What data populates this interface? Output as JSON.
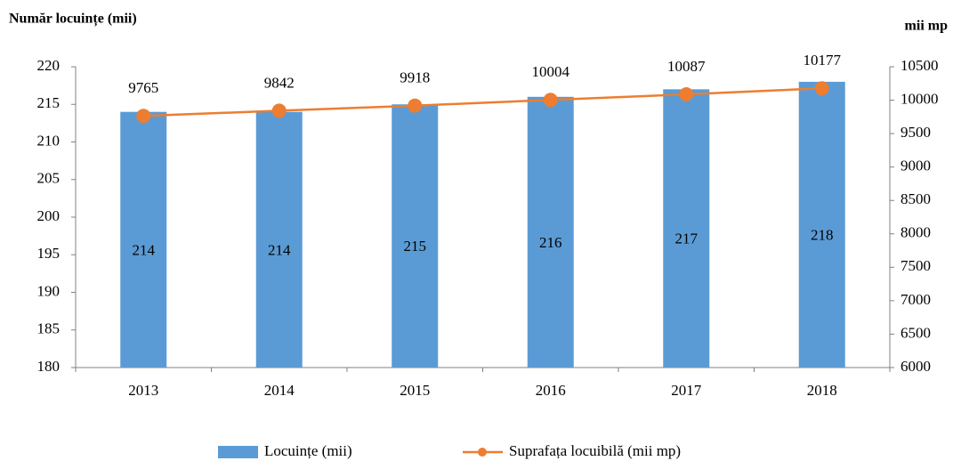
{
  "chart_data": {
    "type": "bar",
    "y_label": "Număr locuințe (mii)",
    "y2_label": "mii mp",
    "categories": [
      "2013",
      "2014",
      "2015",
      "2016",
      "2017",
      "2018"
    ],
    "series": [
      {
        "name": "Locuințe (mii)",
        "type": "bar",
        "color": "#5b9bd5",
        "values": [
          214,
          214,
          215,
          216,
          217,
          218
        ]
      },
      {
        "name": "Suprafața locuibilă (mii mp)",
        "type": "line",
        "axis": "y2",
        "color": "#ed7d31",
        "values": [
          9765,
          9842,
          9918,
          10004,
          10087,
          10177
        ]
      }
    ],
    "ylim": [
      180,
      220
    ],
    "yticks": [
      180,
      185,
      190,
      195,
      200,
      205,
      210,
      215,
      220
    ],
    "y2lim": [
      6000,
      10500
    ],
    "y2ticks": [
      6000,
      6500,
      7000,
      7500,
      8000,
      8500,
      9000,
      9500,
      10000,
      10500
    ],
    "grid": false,
    "legend": "bottom"
  }
}
